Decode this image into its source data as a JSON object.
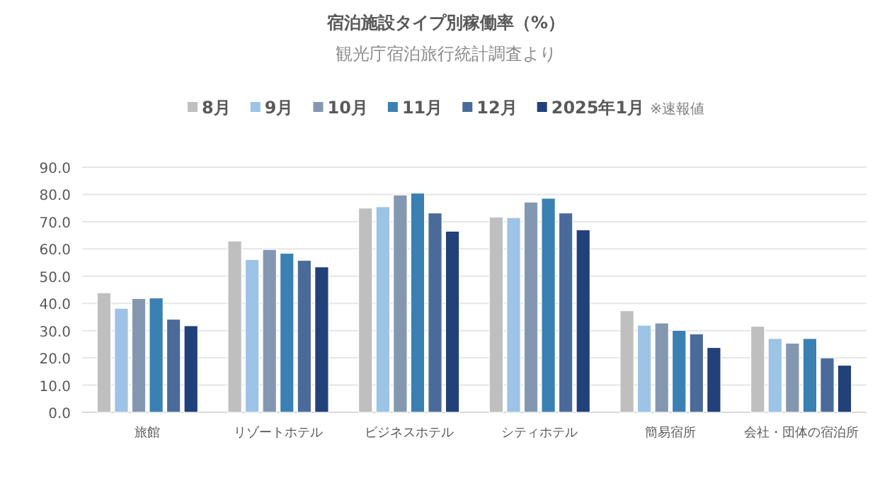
{
  "chart_data": {
    "type": "bar",
    "title": "宿泊施設タイプ別稼働率（%）",
    "subtitle": "観光庁宿泊旅行統計調査より",
    "categories": [
      "旅館",
      "リゾートホテル",
      "ビジネスホテル",
      "シティホテル",
      "簡易宿所",
      "会社・団体の宿泊所"
    ],
    "series": [
      {
        "name": "8月",
        "color": "#bfbfbf",
        "values": [
          43.9,
          62.9,
          75.0,
          71.7,
          37.3,
          31.6
        ]
      },
      {
        "name": "9月",
        "color": "#9dc3e6",
        "values": [
          38.2,
          56.1,
          75.5,
          71.5,
          32.0,
          27.1
        ]
      },
      {
        "name": "10月",
        "color": "#8497b0",
        "values": [
          41.8,
          59.8,
          79.8,
          77.2,
          32.8,
          25.4
        ]
      },
      {
        "name": "11月",
        "color": "#3a80b3",
        "values": [
          42.0,
          58.4,
          80.5,
          78.6,
          30.1,
          27.1
        ]
      },
      {
        "name": "12月",
        "color": "#4a6b9a",
        "values": [
          34.2,
          55.8,
          73.2,
          73.2,
          28.8,
          20.0
        ]
      },
      {
        "name": "2025年1月",
        "color": "#22407a",
        "values": [
          31.8,
          53.4,
          66.5,
          67.0,
          23.8,
          17.3
        ]
      }
    ],
    "annotations": [
      "※速報値"
    ],
    "ylim": [
      0,
      90
    ],
    "yticks": [
      {
        "value": 0,
        "label": "0.0"
      },
      {
        "value": 10,
        "label": "10.0"
      },
      {
        "value": 20,
        "label": "20.0"
      },
      {
        "value": 30,
        "label": "30.0"
      },
      {
        "value": 40,
        "label": "40.0"
      },
      {
        "value": 50,
        "label": "50.0"
      },
      {
        "value": 60,
        "label": "60.0"
      },
      {
        "value": 70,
        "label": "70.0"
      },
      {
        "value": 80,
        "label": "80.0"
      },
      {
        "value": 90,
        "label": "90.0"
      }
    ],
    "grid": "y",
    "legend": "top"
  }
}
